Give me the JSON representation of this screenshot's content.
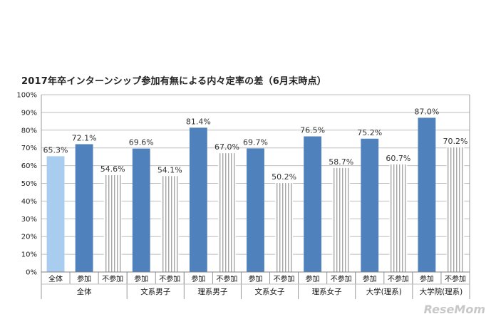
{
  "chart_data": {
    "type": "bar",
    "title": "2017年卒インターンシップ参加有無による内々定率の差（6月末時点）",
    "ylim": [
      0,
      100
    ],
    "y_ticks": [
      "0%",
      "10%",
      "20%",
      "30%",
      "40%",
      "50%",
      "60%",
      "70%",
      "80%",
      "90%",
      "100%"
    ],
    "grid": true,
    "groups": [
      {
        "name": "全体",
        "bars": [
          {
            "label": "全体",
            "value": 65.3,
            "text": "65.3%",
            "style": "light"
          },
          {
            "label": "参加",
            "value": 72.1,
            "text": "72.1%",
            "style": "solid"
          },
          {
            "label": "不参加",
            "value": 54.6,
            "text": "54.6%",
            "style": "striped"
          }
        ]
      },
      {
        "name": "文系男子",
        "bars": [
          {
            "label": "参加",
            "value": 69.6,
            "text": "69.6%",
            "style": "solid"
          },
          {
            "label": "不参加",
            "value": 54.1,
            "text": "54.1%",
            "style": "striped"
          }
        ]
      },
      {
        "name": "理系男子",
        "bars": [
          {
            "label": "参加",
            "value": 81.4,
            "text": "81.4%",
            "style": "solid"
          },
          {
            "label": "不参加",
            "value": 67.0,
            "text": "67.0%",
            "style": "striped"
          }
        ]
      },
      {
        "name": "文系女子",
        "bars": [
          {
            "label": "参加",
            "value": 69.7,
            "text": "69.7%",
            "style": "solid"
          },
          {
            "label": "不参加",
            "value": 50.2,
            "text": "50.2%",
            "style": "striped"
          }
        ]
      },
      {
        "name": "理系女子",
        "bars": [
          {
            "label": "参加",
            "value": 76.5,
            "text": "76.5%",
            "style": "solid"
          },
          {
            "label": "不参加",
            "value": 58.7,
            "text": "58.7%",
            "style": "striped"
          }
        ]
      },
      {
        "name": "大学(理系)",
        "bars": [
          {
            "label": "参加",
            "value": 75.2,
            "text": "75.2%",
            "style": "solid"
          },
          {
            "label": "不参加",
            "value": 60.7,
            "text": "60.7%",
            "style": "striped"
          }
        ]
      },
      {
        "name": "大学院(理系)",
        "bars": [
          {
            "label": "参加",
            "value": 87.0,
            "text": "87.0%",
            "style": "solid"
          },
          {
            "label": "不参加",
            "value": 70.2,
            "text": "70.2%",
            "style": "striped"
          }
        ]
      }
    ],
    "colors": {
      "solid": "#4f81bd",
      "light": "#a9cdee",
      "stripe": "#a6a6a6"
    }
  },
  "watermark": "ReseMom"
}
